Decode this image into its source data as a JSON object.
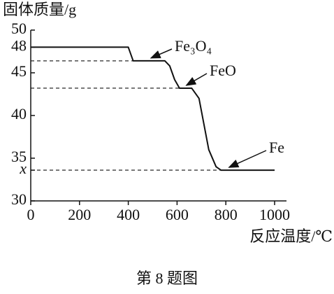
{
  "chart_data": {
    "type": "line",
    "title": "固体质量/g",
    "x_label": "反应温度/℃",
    "caption": "第 8 题图",
    "x": [
      0,
      400,
      420,
      550,
      570,
      590,
      610,
      660,
      690,
      710,
      730,
      760,
      780,
      1000
    ],
    "series": [
      {
        "color": "#111111",
        "values": [
          48,
          48,
          46.4,
          46.4,
          45.8,
          44.2,
          43.2,
          43.2,
          42,
          39,
          36,
          34,
          33.6,
          33.6
        ]
      }
    ],
    "xlim": [
      0,
      1000
    ],
    "xticks": [
      0,
      200,
      400,
      600,
      800,
      1000
    ],
    "ylim": [
      30,
      50
    ],
    "yticks": [
      30,
      {
        "value": 33.6,
        "label": "x"
      },
      35,
      40,
      45,
      48,
      50
    ],
    "annotations": [
      "Fe₃O₄",
      "FeO",
      "Fe"
    ]
  }
}
